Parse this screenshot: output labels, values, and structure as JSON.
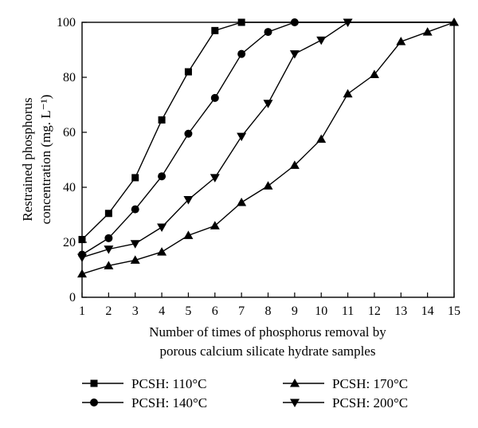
{
  "chart_data": {
    "type": "line",
    "xlabel_lines": [
      "Number of times of phosphorus removal by",
      "porous calcium silicate hydrate samples"
    ],
    "ylabel_lines": [
      "Restrained phosphorus",
      "concentration (mg. L⁻¹)"
    ],
    "xlim": [
      1,
      15
    ],
    "ylim": [
      0,
      100
    ],
    "x_ticks": [
      1,
      2,
      3,
      4,
      5,
      6,
      7,
      8,
      9,
      10,
      11,
      12,
      13,
      14,
      15
    ],
    "y_ticks": [
      0,
      20,
      40,
      60,
      80,
      100
    ],
    "grid": false,
    "legend_position": "bottom",
    "series": [
      {
        "name": "PCSH: 110°C",
        "marker": "square",
        "color": "#000000",
        "x": [
          1,
          2,
          3,
          4,
          5,
          6,
          7,
          8,
          9,
          10,
          11,
          12,
          13,
          14,
          15
        ],
        "y": [
          21,
          30.5,
          43.5,
          64.5,
          82,
          97,
          100,
          100,
          100,
          100,
          100,
          100,
          100,
          100,
          100
        ]
      },
      {
        "name": "PCSH: 140°C",
        "marker": "circle",
        "color": "#000000",
        "x": [
          1,
          2,
          3,
          4,
          5,
          6,
          7,
          8,
          9,
          10,
          11,
          12,
          13,
          14,
          15
        ],
        "y": [
          15.5,
          21.5,
          32,
          44,
          59.5,
          72.5,
          88.5,
          96.5,
          100,
          100,
          100,
          100,
          100,
          100,
          100
        ]
      },
      {
        "name": "PCSH: 170°C",
        "marker": "triangle-up",
        "color": "#000000",
        "x": [
          1,
          2,
          3,
          4,
          5,
          6,
          7,
          8,
          9,
          10,
          11,
          12,
          13,
          14,
          15
        ],
        "y": [
          8.5,
          11.5,
          13.5,
          16.5,
          22.5,
          26,
          34.5,
          40.5,
          48,
          57.5,
          74,
          81,
          93,
          96.5,
          100
        ]
      },
      {
        "name": "PCSH: 200°C",
        "marker": "triangle-down",
        "color": "#000000",
        "x": [
          1,
          2,
          3,
          4,
          5,
          6,
          7,
          8,
          9,
          10,
          11,
          12,
          13,
          14,
          15
        ],
        "y": [
          14.5,
          17.5,
          19.5,
          25.5,
          35.5,
          43.5,
          58.5,
          70.5,
          88.5,
          93.5,
          100,
          100,
          100,
          100,
          100
        ]
      }
    ]
  }
}
